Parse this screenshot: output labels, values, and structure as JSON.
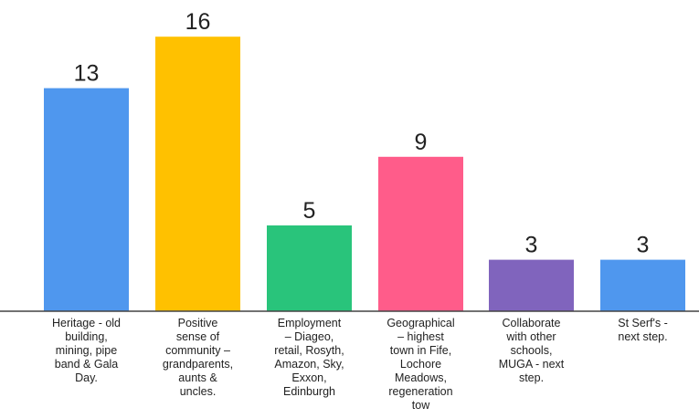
{
  "chart_data": {
    "type": "bar",
    "title": "",
    "xlabel": "",
    "ylabel": "",
    "ylim": [
      0,
      16
    ],
    "grid": false,
    "legend": "none",
    "categories": [
      [
        "Heritage - old",
        "building,",
        "mining, pipe",
        "band & Gala",
        "Day."
      ],
      [
        "Positive",
        "sense of",
        "community –",
        "grandparents,",
        "aunts &",
        "uncles."
      ],
      [
        "Employment",
        "– Diageo,",
        "retail, Rosyth,",
        "Amazon, Sky,",
        "Exxon,",
        "Edinburgh"
      ],
      [
        "Geographical",
        "– highest",
        "town in Fife,",
        "Lochore",
        "Meadows,",
        "regeneration",
        "tow"
      ],
      [
        "Collaborate",
        "with other",
        "schools,",
        "MUGA - next",
        "step."
      ],
      [
        "St Serf's -",
        "next step."
      ]
    ],
    "values": [
      13,
      16,
      5,
      9,
      3,
      3
    ],
    "value_labels": [
      "13",
      "16",
      "5",
      "9",
      "3",
      "3"
    ],
    "colors": [
      "#4f97ee",
      "#ffc100",
      "#29c47b",
      "#ff5c8a",
      "#8064bd",
      "#4f97ee"
    ]
  }
}
